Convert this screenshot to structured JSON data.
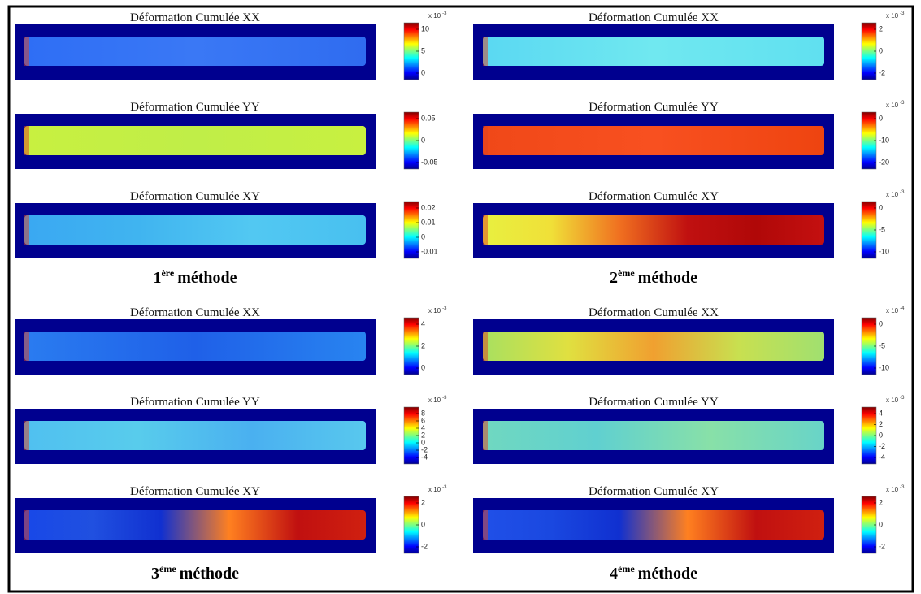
{
  "methods": [
    {
      "number": "1",
      "sup": "ère",
      "name": "méthode",
      "panels": [
        {
          "title": "Déformation Cumulée XX",
          "scale": "x 10",
          "exponent": "-3",
          "ticks": [
            "10",
            "5",
            "0"
          ]
        },
        {
          "title": "Déformation Cumulée YY",
          "ticks": [
            "0.05",
            "0",
            "-0.05"
          ]
        },
        {
          "title": "Déformation Cumulée XY",
          "ticks": [
            "0.02",
            "0.01",
            "0",
            "-0.01"
          ]
        }
      ]
    },
    {
      "number": "2",
      "sup": "ème",
      "name": "méthode",
      "panels": [
        {
          "title": "Déformation Cumulée XX",
          "scale": "x 10",
          "exponent": "-3",
          "ticks": [
            "2",
            "0",
            "-2"
          ]
        },
        {
          "title": "Déformation Cumulée YY",
          "scale": "x 10",
          "exponent": "-3",
          "ticks": [
            "0",
            "-10",
            "-20"
          ]
        },
        {
          "title": "Déformation Cumulée XY",
          "scale": "x 10",
          "exponent": "-3",
          "ticks": [
            "0",
            "-5",
            "-10"
          ]
        }
      ]
    },
    {
      "number": "3",
      "sup": "ème",
      "name": "méthode",
      "panels": [
        {
          "title": "Déformation Cumulée XX",
          "scale": "x 10",
          "exponent": "-3",
          "ticks": [
            "4",
            "2",
            "0"
          ]
        },
        {
          "title": "Déformation Cumulée YY",
          "scale": "x 10",
          "exponent": "-3",
          "ticks": [
            "8",
            "6",
            "4",
            "2",
            "0",
            "-2",
            "-4"
          ]
        },
        {
          "title": "Déformation Cumulée XY",
          "scale": "x 10",
          "exponent": "-3",
          "ticks": [
            "2",
            "0",
            "-2"
          ]
        }
      ]
    },
    {
      "number": "4",
      "sup": "ème",
      "name": "méthode",
      "panels": [
        {
          "title": "Déformation Cumulée XX",
          "scale": "x 10",
          "exponent": "-4",
          "ticks": [
            "0",
            "-5",
            "-10"
          ]
        },
        {
          "title": "Déformation Cumulée YY",
          "scale": "x 10",
          "exponent": "-3",
          "ticks": [
            "4",
            "2",
            "0",
            "-2",
            "-4"
          ]
        },
        {
          "title": "Déformation Cumulée XY",
          "scale": "x 10",
          "exponent": "-3",
          "ticks": [
            "2",
            "0",
            "-2"
          ]
        }
      ]
    }
  ]
}
